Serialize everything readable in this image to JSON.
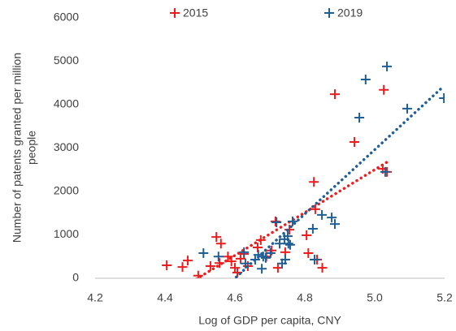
{
  "chart_data": {
    "type": "scatter",
    "x_label": "Log of GDP per capita, CNY",
    "y_label_lines": [
      "Number of patents granted per million",
      "people"
    ],
    "xlim": [
      4.2,
      5.2
    ],
    "xticks": [
      4.2,
      4.4,
      4.6,
      4.8,
      {
        "value": 5,
        "label": "5.0"
      },
      5.2
    ],
    "ylim": [
      0,
      6000
    ],
    "yticks": [
      0,
      1000,
      2000,
      3000,
      4000,
      5000,
      6000
    ],
    "marker": "plus",
    "trendline": "linear",
    "legend": "top",
    "series": [
      {
        "name": "2015",
        "color": "#ee1c1c",
        "x": [
          4.405,
          4.45,
          4.465,
          4.495,
          4.53,
          4.547,
          4.56,
          4.556,
          4.58,
          4.59,
          4.6,
          4.607,
          4.616,
          4.626,
          4.637,
          4.665,
          4.674,
          4.69,
          4.705,
          4.716,
          4.723,
          4.744,
          4.756,
          4.805,
          4.81,
          4.826,
          4.83,
          4.835,
          4.85,
          4.886,
          4.942,
          5.026,
          5.023,
          5.035
        ],
        "values": [
          300,
          260,
          410,
          60,
          280,
          950,
          800,
          350,
          500,
          390,
          240,
          130,
          450,
          560,
          280,
          710,
          880,
          500,
          640,
          1310,
          240,
          600,
          1120,
          990,
          580,
          2220,
          1590,
          430,
          240,
          4240,
          3140,
          4340,
          2520,
          2450
        ]
      },
      {
        "name": "2019",
        "color": "#1f5f96",
        "x": [
          4.51,
          4.553,
          4.626,
          4.63,
          4.658,
          4.667,
          4.677,
          4.681,
          4.688,
          4.702,
          4.719,
          4.728,
          4.735,
          4.742,
          4.751,
          4.753,
          4.758,
          4.744,
          4.765,
          4.823,
          4.828,
          4.849,
          4.877,
          4.886,
          4.956,
          4.974,
          5.03,
          5.035,
          5.093,
          5.198
        ],
        "values": [
          580,
          500,
          600,
          340,
          430,
          540,
          220,
          500,
          470,
          580,
          1290,
          800,
          340,
          900,
          970,
          800,
          770,
          430,
          1310,
          1140,
          430,
          1460,
          1400,
          1250,
          3700,
          4580,
          2450,
          4880,
          3910,
          4150
        ]
      }
    ]
  }
}
